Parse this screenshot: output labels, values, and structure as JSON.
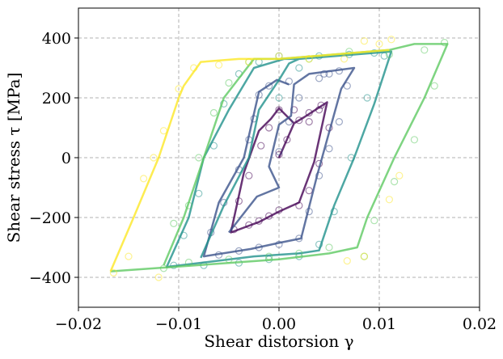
{
  "chart_data": {
    "type": "line",
    "xlabel": "Shear distorsion γ",
    "ylabel": "Shear stress τ [MPa]",
    "xlim": [
      -0.02,
      0.02
    ],
    "ylim": [
      -500,
      500
    ],
    "xticks": [
      -0.02,
      -0.01,
      0.0,
      0.01,
      0.02
    ],
    "xtick_labels": [
      "−0.02",
      "−0.01",
      "0.00",
      "0.01",
      "0.02"
    ],
    "yticks": [
      -400,
      -200,
      0,
      200,
      400
    ],
    "ytick_labels": [
      "−400",
      "−200",
      "0",
      "200",
      "400"
    ],
    "grid": true,
    "grid_style": "dashed",
    "series": [
      {
        "color": "#440154",
        "line": [
          [
            0.0,
            0
          ],
          [
            0.0015,
            115
          ],
          [
            0.0025,
            135
          ],
          [
            0.0048,
            185
          ],
          [
            0.0035,
            -15
          ],
          [
            0.002,
            -150
          ],
          [
            0.0,
            -180
          ],
          [
            -0.002,
            -215
          ],
          [
            -0.0048,
            -250
          ],
          [
            -0.0035,
            -50
          ],
          [
            -0.002,
            90
          ],
          [
            -0.0008,
            130
          ],
          [
            0.0,
            165
          ],
          [
            0.0015,
            115
          ]
        ],
        "points": [
          [
            0.0,
            10
          ],
          [
            0.0008,
            60
          ],
          [
            0.002,
            125
          ],
          [
            0.003,
            150
          ],
          [
            0.0042,
            175
          ],
          [
            0.005,
            100
          ],
          [
            0.004,
            -20
          ],
          [
            0.003,
            -110
          ],
          [
            0.002,
            -160
          ],
          [
            0.0,
            -175
          ],
          [
            -0.001,
            -195
          ],
          [
            -0.002,
            -212
          ],
          [
            -0.003,
            -225
          ],
          [
            -0.0045,
            -240
          ],
          [
            -0.004,
            -145
          ],
          [
            -0.003,
            -60
          ],
          [
            -0.0018,
            40
          ],
          [
            -0.001,
            100
          ],
          [
            0.0,
            160
          ],
          [
            0.0015,
            160
          ],
          [
            0.003,
            120
          ],
          [
            0.004,
            160
          ]
        ]
      },
      {
        "color": "#3b528b",
        "line": [
          [
            -0.005,
            -250
          ],
          [
            -0.0022,
            -130
          ],
          [
            0.0,
            -100
          ],
          [
            -0.001,
            -30
          ],
          [
            0.0,
            110
          ],
          [
            0.0012,
            140
          ],
          [
            0.0015,
            245
          ],
          [
            0.003,
            280
          ],
          [
            0.0075,
            300
          ],
          [
            0.0062,
            230
          ],
          [
            0.0038,
            -60
          ],
          [
            0.0022,
            -270
          ],
          [
            0.0,
            -285
          ],
          [
            -0.0028,
            -305
          ],
          [
            -0.0075,
            -330
          ],
          [
            -0.006,
            -150
          ],
          [
            -0.0035,
            0
          ],
          [
            -0.002,
            220
          ],
          [
            -0.0002,
            260
          ],
          [
            0.001,
            245
          ]
        ],
        "points": [
          [
            0.0,
            20
          ],
          [
            0.001,
            120
          ],
          [
            0.002,
            200
          ],
          [
            0.004,
            265
          ],
          [
            0.005,
            280
          ],
          [
            0.006,
            290
          ],
          [
            0.0068,
            240
          ],
          [
            0.006,
            120
          ],
          [
            0.005,
            30
          ],
          [
            0.004,
            -60
          ],
          [
            0.003,
            -180
          ],
          [
            0.002,
            -270
          ],
          [
            0.0,
            -290
          ],
          [
            -0.002,
            -300
          ],
          [
            -0.004,
            -312
          ],
          [
            -0.006,
            -325
          ],
          [
            -0.0068,
            -250
          ],
          [
            -0.0055,
            -150
          ],
          [
            -0.004,
            -40
          ],
          [
            -0.003,
            60
          ],
          [
            -0.0025,
            130
          ],
          [
            -0.002,
            210
          ],
          [
            -0.001,
            240
          ],
          [
            0.001,
            255
          ],
          [
            0.0045,
            280
          ]
        ]
      },
      {
        "color": "#21918c",
        "line": [
          [
            -0.0078,
            -335
          ],
          [
            -0.0055,
            -160
          ],
          [
            -0.003,
            0
          ],
          [
            -0.002,
            160
          ],
          [
            0.0,
            260
          ],
          [
            0.001,
            315
          ],
          [
            0.002,
            330
          ],
          [
            0.0112,
            355
          ],
          [
            0.0095,
            180
          ],
          [
            0.0075,
            0
          ],
          [
            0.0055,
            -160
          ],
          [
            0.004,
            -310
          ],
          [
            0.002,
            -320
          ],
          [
            -0.0025,
            -330
          ],
          [
            -0.0112,
            -365
          ],
          [
            -0.009,
            -200
          ],
          [
            -0.0075,
            0
          ],
          [
            -0.005,
            160
          ],
          [
            -0.0025,
            300
          ],
          [
            0.0005,
            330
          ],
          [
            0.002,
            330
          ]
        ],
        "points": [
          [
            0.0,
            200
          ],
          [
            0.002,
            300
          ],
          [
            0.004,
            340
          ],
          [
            0.007,
            345
          ],
          [
            0.0095,
            350
          ],
          [
            0.0105,
            340
          ],
          [
            0.0088,
            200
          ],
          [
            0.0072,
            0
          ],
          [
            0.0055,
            -180
          ],
          [
            0.004,
            -290
          ],
          [
            0.002,
            -330
          ],
          [
            -0.001,
            -340
          ],
          [
            -0.004,
            -352
          ],
          [
            -0.0075,
            -360
          ],
          [
            -0.0105,
            -360
          ],
          [
            -0.0095,
            -260
          ],
          [
            -0.008,
            -120
          ],
          [
            -0.0065,
            40
          ],
          [
            -0.0055,
            180
          ],
          [
            -0.004,
            280
          ],
          [
            -0.002,
            320
          ],
          [
            0.0,
            340
          ]
        ]
      },
      {
        "color": "#5ec962",
        "line": [
          [
            -0.0115,
            -360
          ],
          [
            -0.0095,
            -200
          ],
          [
            -0.0075,
            0
          ],
          [
            -0.0055,
            200
          ],
          [
            -0.0025,
            330
          ],
          [
            0.0,
            330
          ],
          [
            0.011,
            360
          ],
          [
            0.0135,
            380
          ],
          [
            0.0168,
            380
          ],
          [
            0.0145,
            200
          ],
          [
            0.0115,
            0
          ],
          [
            0.0088,
            -200
          ],
          [
            0.0078,
            -300
          ],
          [
            0.005,
            -320
          ],
          [
            0.0,
            -340
          ],
          [
            -0.0168,
            -380
          ]
        ],
        "points": [
          [
            0.003,
            330
          ],
          [
            0.007,
            355
          ],
          [
            0.011,
            345
          ],
          [
            0.0145,
            360
          ],
          [
            0.0165,
            385
          ],
          [
            0.0155,
            240
          ],
          [
            0.0135,
            60
          ],
          [
            0.0115,
            -80
          ],
          [
            0.0095,
            -210
          ],
          [
            0.0085,
            -330
          ],
          [
            0.005,
            -300
          ],
          [
            0.002,
            -320
          ],
          [
            -0.001,
            -330
          ],
          [
            -0.005,
            -340
          ],
          [
            -0.009,
            -350
          ],
          [
            -0.0115,
            -370
          ],
          [
            -0.0105,
            -220
          ],
          [
            -0.009,
            -160
          ],
          [
            -0.008,
            0
          ],
          [
            -0.0065,
            150
          ],
          [
            -0.005,
            250
          ],
          [
            -0.003,
            320
          ]
        ]
      },
      {
        "color": "#fde725",
        "line": [
          [
            -0.0168,
            -380
          ],
          [
            -0.0145,
            -200
          ],
          [
            -0.012,
            0
          ],
          [
            -0.01,
            200
          ],
          [
            -0.0095,
            240
          ],
          [
            -0.0078,
            320
          ],
          [
            -0.004,
            330
          ],
          [
            0.0,
            330
          ],
          [
            0.011,
            360
          ]
        ],
        "points": [
          [
            -0.0165,
            -385
          ],
          [
            -0.015,
            -330
          ],
          [
            -0.0135,
            -70
          ],
          [
            -0.0125,
            0
          ],
          [
            -0.0115,
            90
          ],
          [
            -0.01,
            230
          ],
          [
            -0.0085,
            300
          ],
          [
            -0.006,
            310
          ],
          [
            -0.003,
            320
          ],
          [
            0.0,
            340
          ],
          [
            0.003,
            330
          ],
          [
            0.0065,
            330
          ],
          [
            0.0085,
            390
          ],
          [
            0.01,
            380
          ],
          [
            0.0112,
            395
          ],
          [
            0.012,
            -60
          ],
          [
            0.011,
            -140
          ],
          [
            0.0068,
            -345
          ],
          [
            0.0085,
            -330
          ],
          [
            -0.012,
            -400
          ]
        ]
      }
    ]
  }
}
